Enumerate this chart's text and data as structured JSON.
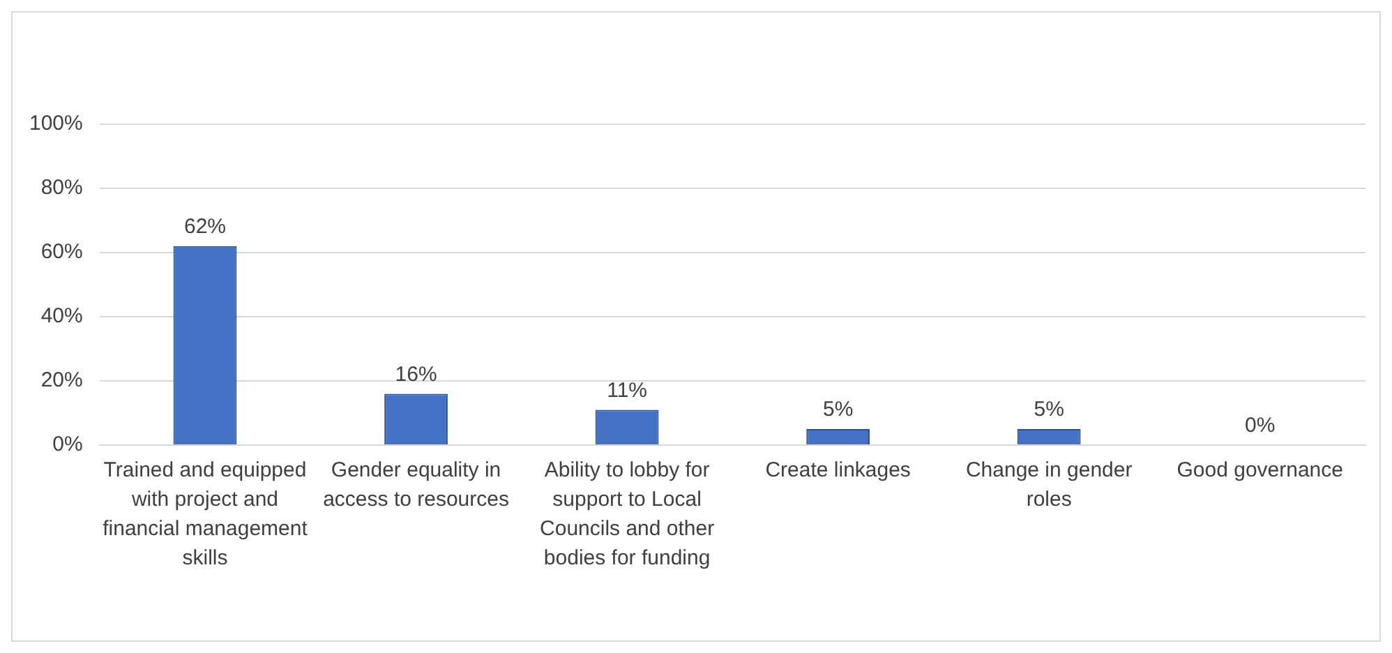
{
  "chart_data": {
    "type": "bar",
    "categories": [
      "Trained and equipped with project and financial management skills",
      "Gender equality in access to resources",
      "Ability to lobby for support to Local Councils and other bodies for funding",
      "Create linkages",
      "Change in gender roles",
      "Good governance"
    ],
    "values": [
      62,
      16,
      11,
      5,
      5,
      0
    ],
    "value_labels": [
      "62%",
      "16%",
      "11%",
      "5%",
      "5%",
      "0%"
    ],
    "color": "#4472c4",
    "ylim": [
      0,
      100
    ],
    "yticks": [
      {
        "value": 0,
        "label": "0%"
      },
      {
        "value": 20,
        "label": "20%"
      },
      {
        "value": 40,
        "label": "40%"
      },
      {
        "value": 60,
        "label": "60%"
      },
      {
        "value": 80,
        "label": "80%"
      },
      {
        "value": 100,
        "label": "100%"
      }
    ],
    "grid": "y",
    "legend": false
  }
}
